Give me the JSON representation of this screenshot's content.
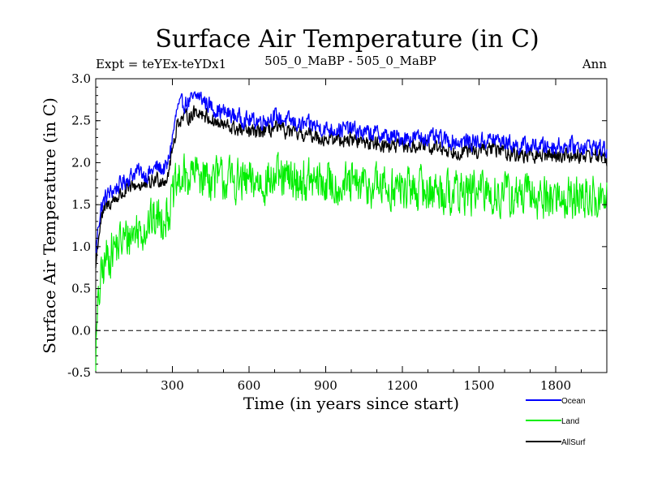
{
  "header": {
    "title": "Surface Air Temperature (in C)",
    "expt": "Expt = teYEx-teYDx1",
    "subtitle": "505_0_MaBP - 505_0_MaBP",
    "period": "Ann"
  },
  "colors": {
    "ocean": "#0000ff",
    "land": "#00ee00",
    "allsurf": "#000000"
  },
  "chart_data": {
    "type": "line",
    "title": "Surface Air Temperature (in C)",
    "xlabel": "Time (in years since start)",
    "ylabel": "Surface Air Temperature (in C)",
    "xlim": [
      0,
      2000
    ],
    "ylim": [
      -0.5,
      3.0
    ],
    "xticks": [
      300,
      600,
      900,
      1200,
      1500,
      1800
    ],
    "xtick_labels": [
      "300",
      "600",
      "900",
      "1200",
      "1500",
      "1800"
    ],
    "yticks": [
      -0.5,
      0.0,
      0.5,
      1.0,
      1.5,
      2.0,
      2.5,
      3.0
    ],
    "ytick_labels": [
      "-0.5",
      "0.0",
      "0.5",
      "1.0",
      "1.5",
      "2.0",
      "2.5",
      "3.0"
    ],
    "reference_line": {
      "y": 0.0,
      "style": "dashed"
    },
    "legend_position": "bottom-right",
    "series": [
      {
        "name": "Ocean",
        "color": "#0000ff",
        "x": [
          0,
          10,
          20,
          40,
          60,
          80,
          100,
          120,
          140,
          160,
          180,
          200,
          220,
          240,
          260,
          280,
          300,
          320,
          340,
          360,
          380,
          400,
          420,
          440,
          460,
          480,
          500,
          550,
          600,
          650,
          700,
          750,
          800,
          850,
          900,
          950,
          1000,
          1050,
          1100,
          1150,
          1200,
          1250,
          1300,
          1350,
          1400,
          1450,
          1500,
          1550,
          1600,
          1650,
          1700,
          1750,
          1800,
          1850,
          1900,
          1950,
          2000
        ],
        "y": [
          0.9,
          1.25,
          1.45,
          1.6,
          1.65,
          1.7,
          1.75,
          1.8,
          1.85,
          1.9,
          1.88,
          1.85,
          1.9,
          1.95,
          1.92,
          1.95,
          2.3,
          2.65,
          2.7,
          2.72,
          2.75,
          2.8,
          2.75,
          2.7,
          2.65,
          2.62,
          2.6,
          2.55,
          2.5,
          2.5,
          2.55,
          2.5,
          2.45,
          2.45,
          2.4,
          2.4,
          2.4,
          2.35,
          2.35,
          2.3,
          2.3,
          2.3,
          2.3,
          2.28,
          2.25,
          2.25,
          2.25,
          2.28,
          2.25,
          2.2,
          2.2,
          2.2,
          2.2,
          2.2,
          2.2,
          2.2,
          2.15
        ],
        "noise": 0.09
      },
      {
        "name": "Land",
        "color": "#00ee00",
        "x": [
          0,
          10,
          20,
          40,
          60,
          80,
          100,
          120,
          140,
          160,
          180,
          200,
          220,
          240,
          260,
          280,
          300,
          320,
          340,
          360,
          380,
          400,
          420,
          440,
          460,
          480,
          500,
          550,
          600,
          650,
          700,
          750,
          800,
          850,
          900,
          950,
          1000,
          1050,
          1100,
          1150,
          1200,
          1250,
          1300,
          1350,
          1400,
          1450,
          1500,
          1550,
          1600,
          1650,
          1700,
          1750,
          1800,
          1850,
          1900,
          1950,
          2000
        ],
        "y": [
          -0.3,
          0.3,
          0.6,
          0.85,
          0.95,
          1.0,
          1.05,
          1.1,
          1.15,
          1.2,
          1.22,
          1.25,
          1.3,
          1.33,
          1.36,
          1.4,
          1.55,
          1.75,
          1.8,
          1.82,
          1.85,
          1.88,
          1.86,
          1.84,
          1.82,
          1.8,
          1.8,
          1.78,
          1.75,
          1.78,
          1.8,
          1.78,
          1.78,
          1.76,
          1.75,
          1.74,
          1.72,
          1.72,
          1.72,
          1.7,
          1.68,
          1.68,
          1.68,
          1.66,
          1.65,
          1.65,
          1.64,
          1.64,
          1.62,
          1.6,
          1.6,
          1.58,
          1.6,
          1.58,
          1.58,
          1.58,
          1.56
        ],
        "noise": 0.24
      },
      {
        "name": "AllSurf",
        "color": "#000000",
        "x": [
          0,
          10,
          20,
          40,
          60,
          80,
          100,
          120,
          140,
          160,
          180,
          200,
          220,
          240,
          260,
          280,
          300,
          320,
          340,
          360,
          380,
          400,
          420,
          440,
          460,
          480,
          500,
          550,
          600,
          650,
          700,
          750,
          800,
          850,
          900,
          950,
          1000,
          1050,
          1100,
          1150,
          1200,
          1250,
          1300,
          1350,
          1400,
          1450,
          1500,
          1550,
          1600,
          1650,
          1700,
          1750,
          1800,
          1850,
          1900,
          1950,
          2000
        ],
        "y": [
          0.75,
          1.1,
          1.3,
          1.48,
          1.53,
          1.58,
          1.62,
          1.66,
          1.7,
          1.74,
          1.73,
          1.72,
          1.77,
          1.81,
          1.79,
          1.82,
          2.15,
          2.48,
          2.53,
          2.55,
          2.58,
          2.62,
          2.58,
          2.54,
          2.5,
          2.46,
          2.44,
          2.4,
          2.36,
          2.37,
          2.41,
          2.37,
          2.33,
          2.33,
          2.28,
          2.28,
          2.28,
          2.24,
          2.24,
          2.2,
          2.19,
          2.19,
          2.19,
          2.17,
          2.14,
          2.14,
          2.14,
          2.17,
          2.14,
          2.09,
          2.09,
          2.09,
          2.09,
          2.09,
          2.09,
          2.09,
          2.05
        ],
        "noise": 0.08
      }
    ]
  }
}
